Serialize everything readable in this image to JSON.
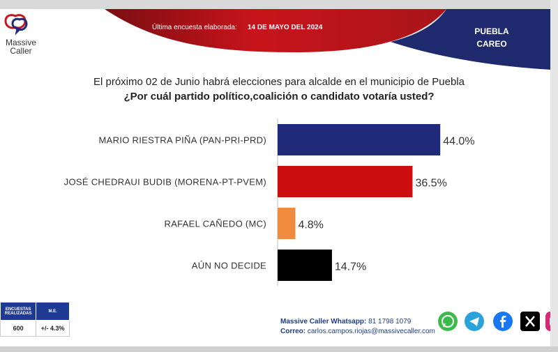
{
  "header": {
    "brand_line1": "Massive",
    "brand_line2": "Caller",
    "survey_label": "Última encuesta elaborada:",
    "survey_date": "14 DE MAYO DEL 2024",
    "city_line1": "PUEBLA",
    "city_line2": "CAREO"
  },
  "question": {
    "line1": "El próximo 02 de Junio habrá elecciones para alcalde en el municipio de Puebla",
    "line2": "¿Por cuál partido político,coalición o candidato votaría usted?"
  },
  "chart_data": {
    "type": "bar",
    "orientation": "horizontal",
    "categories": [
      "MARIO RIESTRA PIÑA (PAN-PRI-PRD)",
      "JOSÉ CHEDRAUI BUDIB (MORENA-PT-PVEM)",
      "RAFAEL CAÑEDO (MC)",
      "AÚN NO DECIDE"
    ],
    "values": [
      44.0,
      36.5,
      4.8,
      14.7
    ],
    "value_labels": [
      "44.0%",
      "36.5%",
      "4.8%",
      "14.7%"
    ],
    "colors": [
      "#1f2a7a",
      "#cc0d0d",
      "#f08a3c",
      "#000000"
    ],
    "xlim": [
      0,
      100
    ],
    "grid": false
  },
  "stats": {
    "header_surveys_line1": "ENCUESTAS",
    "header_surveys_line2": "REALIZADAS",
    "header_me": "M.E.",
    "surveys": "600",
    "margin": "+/- 4.3%"
  },
  "contact": {
    "whatsapp_label": "Massive Caller Whatsapp:",
    "whatsapp_number": "81 1798 1079",
    "email_label": "Correo:",
    "email": "carlos.campos.riojas@massivecaller.com"
  },
  "social_icons": [
    "whatsapp-icon",
    "telegram-icon",
    "facebook-icon",
    "x-icon",
    "instagram-icon"
  ],
  "colors": {
    "navy": "#1f2a7a",
    "red": "#c4161c",
    "accent_blue": "#1f3a93"
  }
}
